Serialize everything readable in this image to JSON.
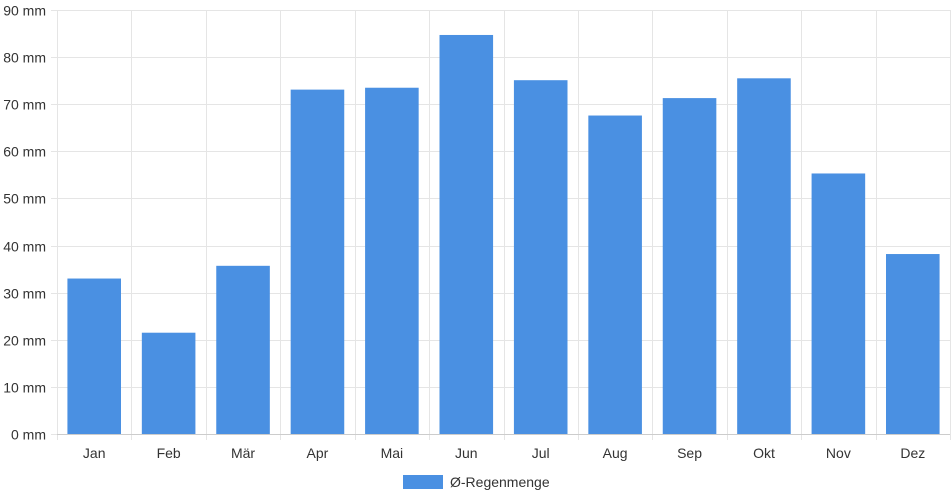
{
  "chart_data": {
    "type": "bar",
    "categories": [
      "Jan",
      "Feb",
      "Mär",
      "Apr",
      "Mai",
      "Jun",
      "Jul",
      "Aug",
      "Sep",
      "Okt",
      "Nov",
      "Dez"
    ],
    "series": [
      {
        "name": "Ø-Regenmenge",
        "values": [
          33,
          21.5,
          35.7,
          73.1,
          73.5,
          84.7,
          75.1,
          67.6,
          71.3,
          75.5,
          55.3,
          38.2
        ],
        "color": "#4a90e2"
      }
    ],
    "ylim": [
      0,
      90
    ],
    "y_ticks": [
      {
        "value": 0,
        "label": "0 mm"
      },
      {
        "value": 10,
        "label": "10 mm"
      },
      {
        "value": 20,
        "label": "20 mm"
      },
      {
        "value": 30,
        "label": "30 mm"
      },
      {
        "value": 40,
        "label": "40 mm"
      },
      {
        "value": 50,
        "label": "50 mm"
      },
      {
        "value": 60,
        "label": "60 mm"
      },
      {
        "value": 70,
        "label": "70 mm"
      },
      {
        "value": 80,
        "label": "80 mm"
      },
      {
        "value": 90,
        "label": "90 mm"
      }
    ],
    "grid": true,
    "legend_position": "bottom",
    "colors": {
      "bar": "#4a90e2",
      "grid": "#e5e5e5",
      "axis": "#cccccc",
      "text": "#333333"
    }
  }
}
